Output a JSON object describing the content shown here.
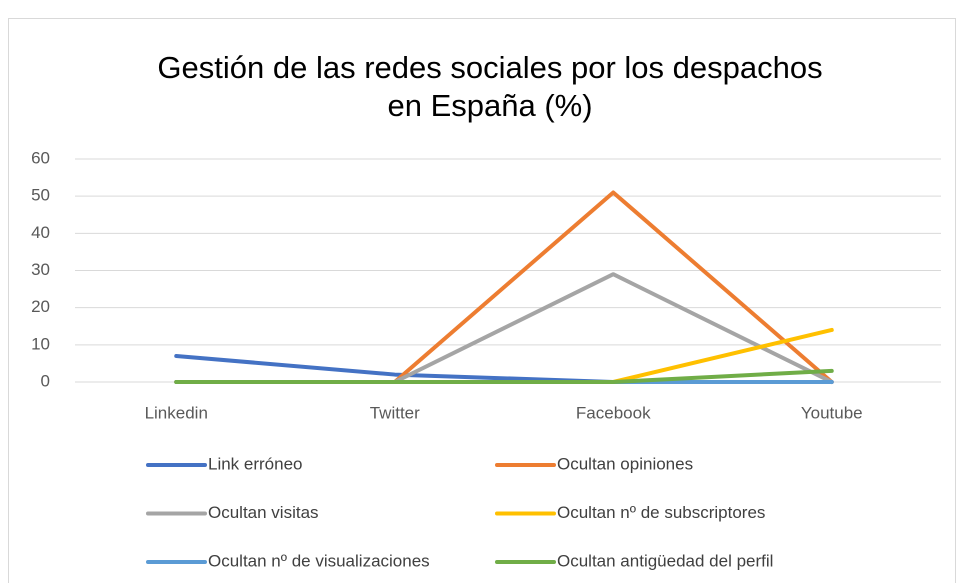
{
  "chart_data": {
    "type": "line",
    "title": [
      "Gestión de las redes sociales por los despachos",
      "en España (%)"
    ],
    "categories": [
      "Linkedin",
      "Twitter",
      "Facebook",
      "Youtube"
    ],
    "series": [
      {
        "name": "Link erróneo",
        "color": "#4472c4",
        "values": [
          7,
          2,
          0,
          0
        ]
      },
      {
        "name": "Ocultan opiniones",
        "color": "#ed7d31",
        "values": [
          0,
          0,
          51,
          0
        ]
      },
      {
        "name": "Ocultan visitas",
        "color": "#a5a5a5",
        "values": [
          0,
          0,
          29,
          0
        ]
      },
      {
        "name": "Ocultan nº de subscriptores",
        "color": "#ffc000",
        "values": [
          0,
          0,
          0,
          14
        ]
      },
      {
        "name": "Ocultan nº de visualizaciones",
        "color": "#5b9bd5",
        "values": [
          0,
          0,
          0,
          0
        ]
      },
      {
        "name": "Ocultan antigüedad del perfil",
        "color": "#70ad47",
        "values": [
          0,
          0,
          0,
          3
        ]
      }
    ],
    "ylim": [
      0,
      60
    ],
    "yticks": [
      0,
      10,
      20,
      30,
      40,
      50,
      60
    ],
    "grid": true,
    "legend": "bottom"
  }
}
